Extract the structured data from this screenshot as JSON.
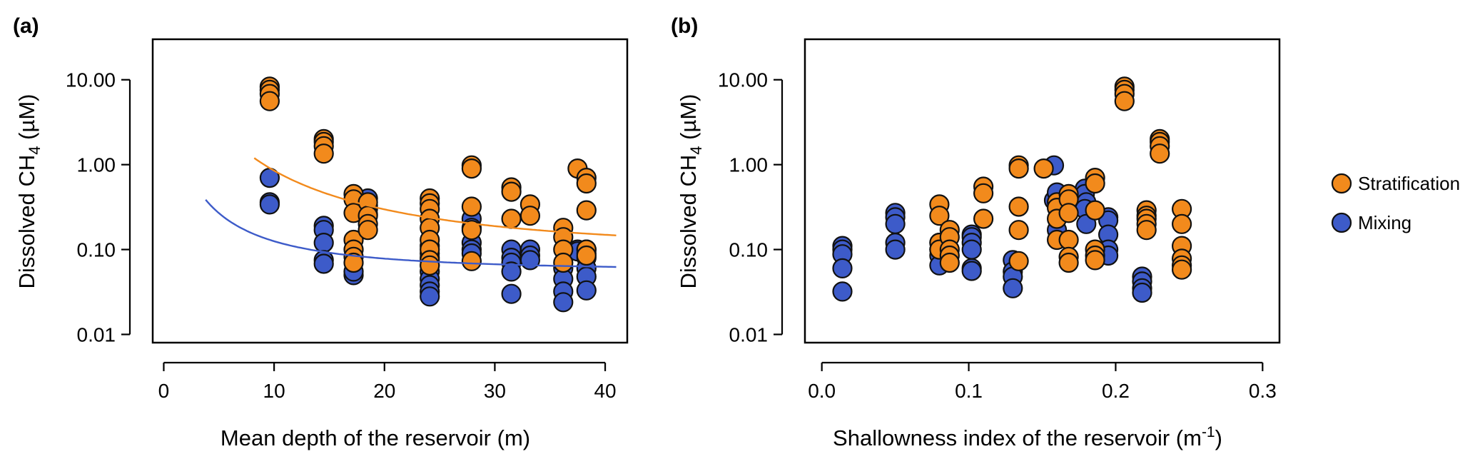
{
  "colors": {
    "stratification": "#F28A1C",
    "mixing": "#3D5BC9",
    "stroke": "#111111"
  },
  "legend": [
    {
      "label": "Stratification",
      "color": "#F28A1C"
    },
    {
      "label": "Mixing",
      "color": "#3D5BC9"
    }
  ],
  "chart_data": [
    {
      "panel": "(a)",
      "type": "scatter",
      "xlabel": "Mean depth of the reservoir (m)",
      "ylabel_main": "Dissolved CH",
      "ylabel_sub": "4",
      "ylabel_unit": " (µM)",
      "xlim": [
        -1,
        42
      ],
      "ylim": [
        0.008,
        30
      ],
      "yscale": "log",
      "xticks": [
        0,
        10,
        20,
        30,
        40
      ],
      "xtick_labels": [
        "0",
        "10",
        "20",
        "30",
        "40"
      ],
      "yticks": [
        0.01,
        0.1,
        1,
        10
      ],
      "ytick_labels": [
        "0.01",
        "0.10",
        "1.00",
        "10.00"
      ],
      "series": [
        {
          "name": "Mixing",
          "color": "#3D5BC9",
          "points": [
            [
              9.6,
              0.7
            ],
            [
              9.6,
              0.36
            ],
            [
              9.6,
              0.34
            ],
            [
              14.5,
              0.19
            ],
            [
              14.5,
              0.17
            ],
            [
              14.5,
              0.12
            ],
            [
              14.5,
              0.075
            ],
            [
              14.5,
              0.068
            ],
            [
              17.2,
              0.05
            ],
            [
              17.2,
              0.055
            ],
            [
              18.5,
              0.4
            ],
            [
              18.5,
              0.33
            ],
            [
              18.5,
              0.3
            ],
            [
              18.5,
              0.26
            ],
            [
              24.1,
              0.11
            ],
            [
              24.1,
              0.09
            ],
            [
              24.1,
              0.08
            ],
            [
              24.1,
              0.065
            ],
            [
              24.1,
              0.055
            ],
            [
              24.1,
              0.045
            ],
            [
              24.1,
              0.038
            ],
            [
              24.1,
              0.032
            ],
            [
              24.1,
              0.028
            ],
            [
              27.9,
              0.23
            ],
            [
              27.9,
              0.18
            ],
            [
              27.9,
              0.12
            ],
            [
              27.9,
              0.1
            ],
            [
              27.9,
              0.09
            ],
            [
              31.5,
              0.1
            ],
            [
              31.5,
              0.08
            ],
            [
              31.5,
              0.07
            ],
            [
              31.5,
              0.055
            ],
            [
              31.5,
              0.03
            ],
            [
              33.2,
              0.1
            ],
            [
              33.2,
              0.085
            ],
            [
              33.2,
              0.075
            ],
            [
              36.2,
              0.06
            ],
            [
              36.2,
              0.045
            ],
            [
              36.2,
              0.032
            ],
            [
              36.2,
              0.024
            ],
            [
              37.5,
              0.1
            ],
            [
              37.5,
              0.095
            ],
            [
              38.3,
              0.1
            ],
            [
              38.3,
              0.09
            ],
            [
              38.3,
              0.08
            ],
            [
              38.3,
              0.06
            ],
            [
              38.3,
              0.048
            ],
            [
              38.3,
              0.033
            ]
          ],
          "fit": {
            "a": 0.055,
            "b": 2.8,
            "p": 1.6,
            "x_start": 3.8,
            "x_end": 41
          }
        },
        {
          "name": "Stratification",
          "color": "#F28A1C",
          "points": [
            [
              9.6,
              8.3
            ],
            [
              9.6,
              7.6
            ],
            [
              9.6,
              6.8
            ],
            [
              9.6,
              5.6
            ],
            [
              14.5,
              2.0
            ],
            [
              14.5,
              1.85
            ],
            [
              14.5,
              1.65
            ],
            [
              14.5,
              1.35
            ],
            [
              17.2,
              0.45
            ],
            [
              17.2,
              0.39
            ],
            [
              17.2,
              0.27
            ],
            [
              17.2,
              0.13
            ],
            [
              17.2,
              0.1
            ],
            [
              17.2,
              0.082
            ],
            [
              17.2,
              0.07
            ],
            [
              18.5,
              0.36
            ],
            [
              18.5,
              0.25
            ],
            [
              18.5,
              0.2
            ],
            [
              18.5,
              0.17
            ],
            [
              24.1,
              0.4
            ],
            [
              24.1,
              0.35
            ],
            [
              24.1,
              0.3
            ],
            [
              24.1,
              0.23
            ],
            [
              24.1,
              0.18
            ],
            [
              24.1,
              0.13
            ],
            [
              24.1,
              0.1
            ],
            [
              24.1,
              0.075
            ],
            [
              24.1,
              0.065
            ],
            [
              27.9,
              0.98
            ],
            [
              27.9,
              0.9
            ],
            [
              27.9,
              0.32
            ],
            [
              27.9,
              0.17
            ],
            [
              27.9,
              0.073
            ],
            [
              31.5,
              0.54
            ],
            [
              31.5,
              0.48
            ],
            [
              31.5,
              0.23
            ],
            [
              33.2,
              0.34
            ],
            [
              33.2,
              0.25
            ],
            [
              36.2,
              0.18
            ],
            [
              36.2,
              0.14
            ],
            [
              36.2,
              0.1
            ],
            [
              36.2,
              0.07
            ],
            [
              37.5,
              0.9
            ],
            [
              38.3,
              0.7
            ],
            [
              38.3,
              0.6
            ],
            [
              38.3,
              0.29
            ],
            [
              38.3,
              0.1
            ],
            [
              38.3,
              0.085
            ]
          ],
          "fit": {
            "a": 0.095,
            "b": 60,
            "p": 1.9,
            "x_start": 8.2,
            "x_end": 41
          }
        }
      ]
    },
    {
      "panel": "(b)",
      "type": "scatter",
      "xlabel_main": "Shallowness index of the reservoir (m",
      "xlabel_sup": "-1",
      "xlabel_end": ")",
      "ylabel_main": "Dissolved CH",
      "ylabel_sub": "4",
      "ylabel_unit": " (µM)",
      "xlim": [
        -0.0115,
        0.3115
      ],
      "ylim": [
        0.008,
        30
      ],
      "yscale": "log",
      "xticks": [
        0.0,
        0.1,
        0.2,
        0.3
      ],
      "xtick_labels": [
        "0.0",
        "0.1",
        "0.2",
        "0.3"
      ],
      "yticks": [
        0.01,
        0.1,
        1,
        10
      ],
      "ytick_labels": [
        "0.01",
        "0.10",
        "1.00",
        "10.00"
      ],
      "series": [
        {
          "name": "Mixing",
          "color": "#3D5BC9",
          "points": [
            [
              0.014,
              0.11
            ],
            [
              0.014,
              0.1
            ],
            [
              0.014,
              0.088
            ],
            [
              0.014,
              0.06
            ],
            [
              0.014,
              0.032
            ],
            [
              0.05,
              0.27
            ],
            [
              0.05,
              0.24
            ],
            [
              0.05,
              0.2
            ],
            [
              0.05,
              0.12
            ],
            [
              0.05,
              0.1
            ],
            [
              0.08,
              0.12
            ],
            [
              0.08,
              0.1
            ],
            [
              0.08,
              0.085
            ],
            [
              0.08,
              0.065
            ],
            [
              0.102,
              0.15
            ],
            [
              0.102,
              0.14
            ],
            [
              0.102,
              0.12
            ],
            [
              0.102,
              0.1
            ],
            [
              0.102,
              0.06
            ],
            [
              0.102,
              0.056
            ],
            [
              0.13,
              0.075
            ],
            [
              0.13,
              0.055
            ],
            [
              0.13,
              0.048
            ],
            [
              0.13,
              0.035
            ],
            [
              0.158,
              0.38
            ],
            [
              0.16,
              0.47
            ],
            [
              0.16,
              0.17
            ],
            [
              0.158,
              0.98
            ],
            [
              0.179,
              0.52
            ],
            [
              0.179,
              0.45
            ],
            [
              0.18,
              0.36
            ],
            [
              0.179,
              0.3
            ],
            [
              0.18,
              0.2
            ],
            [
              0.195,
              0.24
            ],
            [
              0.195,
              0.22
            ],
            [
              0.195,
              0.15
            ],
            [
              0.195,
              0.1
            ],
            [
              0.195,
              0.085
            ],
            [
              0.218,
              0.048
            ],
            [
              0.218,
              0.042
            ],
            [
              0.218,
              0.035
            ],
            [
              0.218,
              0.031
            ]
          ]
        },
        {
          "name": "Stratification",
          "color": "#F28A1C",
          "points": [
            [
              0.08,
              0.34
            ],
            [
              0.08,
              0.25
            ],
            [
              0.08,
              0.12
            ],
            [
              0.08,
              0.1
            ],
            [
              0.087,
              0.17
            ],
            [
              0.087,
              0.14
            ],
            [
              0.087,
              0.1
            ],
            [
              0.087,
              0.085
            ],
            [
              0.087,
              0.07
            ],
            [
              0.11,
              0.55
            ],
            [
              0.11,
              0.46
            ],
            [
              0.11,
              0.23
            ],
            [
              0.134,
              0.98
            ],
            [
              0.134,
              0.9
            ],
            [
              0.134,
              0.32
            ],
            [
              0.134,
              0.17
            ],
            [
              0.134,
              0.073
            ],
            [
              0.151,
              0.9
            ],
            [
              0.16,
              0.36
            ],
            [
              0.16,
              0.31
            ],
            [
              0.16,
              0.23
            ],
            [
              0.16,
              0.13
            ],
            [
              0.168,
              0.45
            ],
            [
              0.168,
              0.39
            ],
            [
              0.168,
              0.27
            ],
            [
              0.168,
              0.13
            ],
            [
              0.168,
              0.082
            ],
            [
              0.168,
              0.07
            ],
            [
              0.186,
              0.7
            ],
            [
              0.186,
              0.6
            ],
            [
              0.186,
              0.29
            ],
            [
              0.186,
              0.1
            ],
            [
              0.186,
              0.085
            ],
            [
              0.186,
              0.075
            ],
            [
              0.206,
              8.3
            ],
            [
              0.206,
              7.6
            ],
            [
              0.206,
              6.8
            ],
            [
              0.206,
              5.6
            ],
            [
              0.221,
              0.29
            ],
            [
              0.221,
              0.25
            ],
            [
              0.221,
              0.23
            ],
            [
              0.221,
              0.2
            ],
            [
              0.221,
              0.17
            ],
            [
              0.23,
              2.0
            ],
            [
              0.23,
              1.85
            ],
            [
              0.23,
              1.65
            ],
            [
              0.23,
              1.35
            ],
            [
              0.245,
              0.3
            ],
            [
              0.245,
              0.2
            ],
            [
              0.245,
              0.11
            ],
            [
              0.245,
              0.078
            ],
            [
              0.245,
              0.065
            ],
            [
              0.245,
              0.058
            ]
          ]
        }
      ]
    }
  ]
}
